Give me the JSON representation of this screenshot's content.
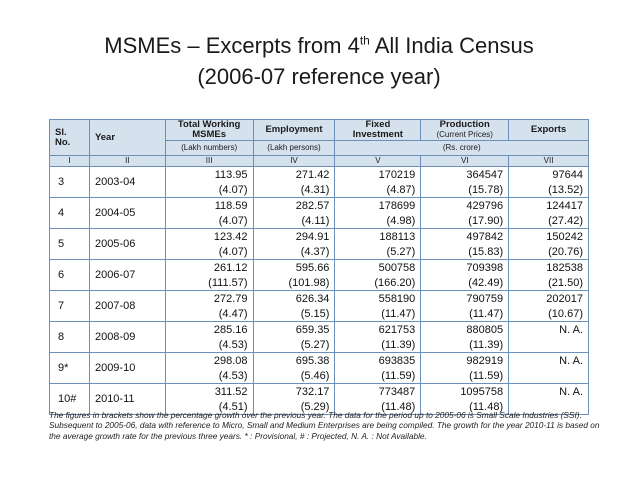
{
  "title": {
    "line1_main": "MSMEs – Excerpts from 4",
    "line1_sup": "th",
    "line1_tail": " All India Census",
    "line2": "(2006-07 reference year)"
  },
  "table": {
    "headers": {
      "sl": "Sl. No.",
      "year": "Year",
      "msmes": "Total Working MSMEs",
      "employment": "Employment",
      "investment": "Fixed Investment",
      "production": "Production",
      "production_note": "(Current Prices)",
      "exports": "Exports"
    },
    "units": {
      "msmes": "(Lakh numbers)",
      "employment": "(Lakh persons)",
      "money": "(Rs. crore)"
    },
    "roman": [
      "I",
      "II",
      "III",
      "IV",
      "V",
      "VI",
      "VII"
    ],
    "rows": [
      {
        "sl": "3",
        "year": "2003-04",
        "msmes": "113.95",
        "emp": "271.42",
        "inv": "170219",
        "prod": "364547",
        "exp": "97644",
        "msmes_g": "(4.07)",
        "emp_g": "(4.31)",
        "inv_g": "(4.87)",
        "prod_g": "(15.78)",
        "exp_g": "(13.52)"
      },
      {
        "sl": "4",
        "year": "2004-05",
        "msmes": "118.59",
        "emp": "282.57",
        "inv": "178699",
        "prod": "429796",
        "exp": "124417",
        "msmes_g": "(4.07)",
        "emp_g": "(4.11)",
        "inv_g": "(4.98)",
        "prod_g": "(17.90)",
        "exp_g": "(27.42)"
      },
      {
        "sl": "5",
        "year": "2005-06",
        "msmes": "123.42",
        "emp": "294.91",
        "inv": "188113",
        "prod": "497842",
        "exp": "150242",
        "msmes_g": "(4.07)",
        "emp_g": "(4.37)",
        "inv_g": "(5.27)",
        "prod_g": "(15.83)",
        "exp_g": "(20.76)"
      },
      {
        "sl": "6",
        "year": "2006-07",
        "msmes": "261.12",
        "emp": "595.66",
        "inv": "500758",
        "prod": "709398",
        "exp": "182538",
        "msmes_g": "(111.57)",
        "emp_g": "(101.98)",
        "inv_g": "(166.20)",
        "prod_g": "(42.49)",
        "exp_g": "(21.50)"
      },
      {
        "sl": "7",
        "year": "2007-08",
        "msmes": "272.79",
        "emp": "626.34",
        "inv": "558190",
        "prod": "790759",
        "exp": "202017",
        "msmes_g": "(4.47)",
        "emp_g": "(5.15)",
        "inv_g": "(11.47)",
        "prod_g": "(11.47)",
        "exp_g": "(10.67)"
      },
      {
        "sl": "8",
        "year": "2008-09",
        "msmes": "285.16",
        "emp": "659.35",
        "inv": "621753",
        "prod": "880805",
        "exp": "N. A.",
        "msmes_g": "(4.53)",
        "emp_g": "(5.27)",
        "inv_g": "(11.39)",
        "prod_g": "(11.39)",
        "exp_g": ""
      },
      {
        "sl": "9*",
        "year": "2009-10",
        "msmes": "298.08",
        "emp": "695.38",
        "inv": "693835",
        "prod": "982919",
        "exp": "N. A.",
        "msmes_g": "(4.53)",
        "emp_g": "(5.46)",
        "inv_g": "(11.59)",
        "prod_g": "(11.59)",
        "exp_g": ""
      },
      {
        "sl": "10#",
        "year": "2010-11",
        "msmes": "311.52",
        "emp": "732.17",
        "inv": "773487",
        "prod": "1095758",
        "exp": "N. A.",
        "msmes_g": "(4.51)",
        "emp_g": "(5.29)",
        "inv_g": "(11.48)",
        "prod_g": "(11.48)",
        "exp_g": ""
      }
    ]
  },
  "footnote": "The figures in brackets show the percentage growth over the previous year. The data for the period up to 2005-06 is Small Scale Industries (SSI). Subsequent to 2005-06, data with reference to Micro, Small and Medium Enterprises are being compiled. The growth for the year 2010-11 is based on the average growth rate for the previous three years. * : Provisional, # : Projected, N. A. : Not Available.",
  "colors": {
    "header_bg": "#d6e1ee",
    "border": "#6b8fb8"
  }
}
